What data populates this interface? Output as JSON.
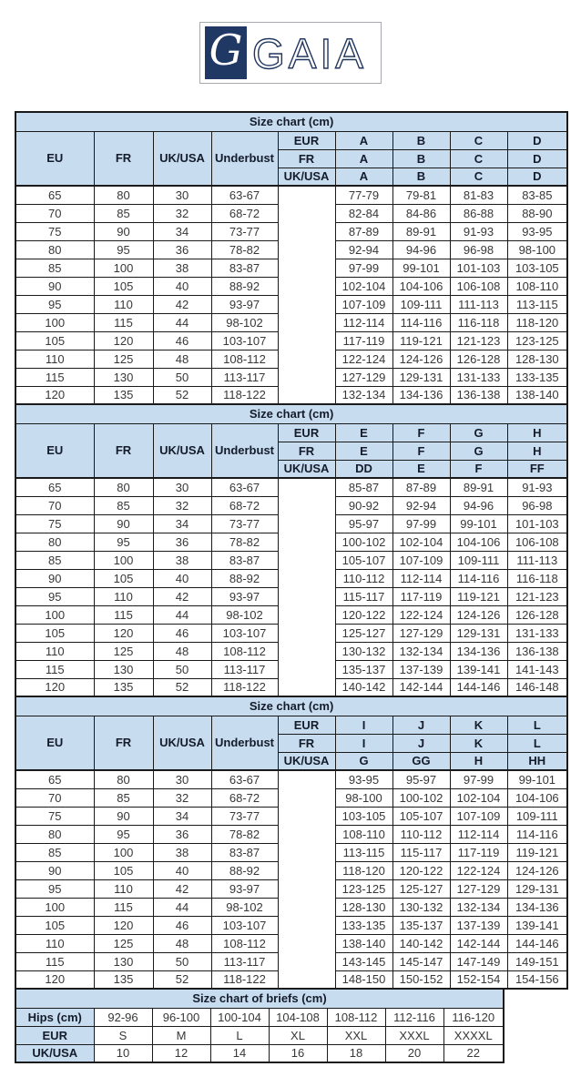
{
  "logo": {
    "brand": "GAIA",
    "monogram": "G",
    "navy": "#1f3864"
  },
  "colors": {
    "header_bg": "#c8dcf0",
    "border": "#1a1a1a",
    "navy": "#1f3864"
  },
  "tables": [
    {
      "title": "Size chart (cm)",
      "band_headers": [
        "EU",
        "FR",
        "UK/USA",
        "Underbust"
      ],
      "cup_rows": [
        {
          "label": "EUR",
          "cups": [
            "A",
            "B",
            "C",
            "D"
          ]
        },
        {
          "label": "FR",
          "cups": [
            "A",
            "B",
            "C",
            "D"
          ]
        },
        {
          "label": "UK/USA",
          "cups": [
            "A",
            "B",
            "C",
            "D"
          ]
        }
      ],
      "rows": [
        [
          "65",
          "80",
          "30",
          "63-67",
          "77-79",
          "79-81",
          "81-83",
          "83-85"
        ],
        [
          "70",
          "85",
          "32",
          "68-72",
          "82-84",
          "84-86",
          "86-88",
          "88-90"
        ],
        [
          "75",
          "90",
          "34",
          "73-77",
          "87-89",
          "89-91",
          "91-93",
          "93-95"
        ],
        [
          "80",
          "95",
          "36",
          "78-82",
          "92-94",
          "94-96",
          "96-98",
          "98-100"
        ],
        [
          "85",
          "100",
          "38",
          "83-87",
          "97-99",
          "99-101",
          "101-103",
          "103-105"
        ],
        [
          "90",
          "105",
          "40",
          "88-92",
          "102-104",
          "104-106",
          "106-108",
          "108-110"
        ],
        [
          "95",
          "110",
          "42",
          "93-97",
          "107-109",
          "109-111",
          "111-113",
          "113-115"
        ],
        [
          "100",
          "115",
          "44",
          "98-102",
          "112-114",
          "114-116",
          "116-118",
          "118-120"
        ],
        [
          "105",
          "120",
          "46",
          "103-107",
          "117-119",
          "119-121",
          "121-123",
          "123-125"
        ],
        [
          "110",
          "125",
          "48",
          "108-112",
          "122-124",
          "124-126",
          "126-128",
          "128-130"
        ],
        [
          "115",
          "130",
          "50",
          "113-117",
          "127-129",
          "129-131",
          "131-133",
          "133-135"
        ],
        [
          "120",
          "135",
          "52",
          "118-122",
          "132-134",
          "134-136",
          "136-138",
          "138-140"
        ]
      ]
    },
    {
      "title": "Size chart (cm)",
      "band_headers": [
        "EU",
        "FR",
        "UK/USA",
        "Underbust"
      ],
      "cup_rows": [
        {
          "label": "EUR",
          "cups": [
            "E",
            "F",
            "G",
            "H"
          ]
        },
        {
          "label": "FR",
          "cups": [
            "E",
            "F",
            "G",
            "H"
          ]
        },
        {
          "label": "UK/USA",
          "cups": [
            "DD",
            "E",
            "F",
            "FF"
          ]
        }
      ],
      "rows": [
        [
          "65",
          "80",
          "30",
          "63-67",
          "85-87",
          "87-89",
          "89-91",
          "91-93"
        ],
        [
          "70",
          "85",
          "32",
          "68-72",
          "90-92",
          "92-94",
          "94-96",
          "96-98"
        ],
        [
          "75",
          "90",
          "34",
          "73-77",
          "95-97",
          "97-99",
          "99-101",
          "101-103"
        ],
        [
          "80",
          "95",
          "36",
          "78-82",
          "100-102",
          "102-104",
          "104-106",
          "106-108"
        ],
        [
          "85",
          "100",
          "38",
          "83-87",
          "105-107",
          "107-109",
          "109-111",
          "111-113"
        ],
        [
          "90",
          "105",
          "40",
          "88-92",
          "110-112",
          "112-114",
          "114-116",
          "116-118"
        ],
        [
          "95",
          "110",
          "42",
          "93-97",
          "115-117",
          "117-119",
          "119-121",
          "121-123"
        ],
        [
          "100",
          "115",
          "44",
          "98-102",
          "120-122",
          "122-124",
          "124-126",
          "126-128"
        ],
        [
          "105",
          "120",
          "46",
          "103-107",
          "125-127",
          "127-129",
          "129-131",
          "131-133"
        ],
        [
          "110",
          "125",
          "48",
          "108-112",
          "130-132",
          "132-134",
          "134-136",
          "136-138"
        ],
        [
          "115",
          "130",
          "50",
          "113-117",
          "135-137",
          "137-139",
          "139-141",
          "141-143"
        ],
        [
          "120",
          "135",
          "52",
          "118-122",
          "140-142",
          "142-144",
          "144-146",
          "146-148"
        ]
      ]
    },
    {
      "title": "Size chart (cm)",
      "band_headers": [
        "EU",
        "FR",
        "UK/USA",
        "Underbust"
      ],
      "cup_rows": [
        {
          "label": "EUR",
          "cups": [
            "I",
            "J",
            "K",
            "L"
          ]
        },
        {
          "label": "FR",
          "cups": [
            "I",
            "J",
            "K",
            "L"
          ]
        },
        {
          "label": "UK/USA",
          "cups": [
            "G",
            "GG",
            "H",
            "HH"
          ]
        }
      ],
      "rows": [
        [
          "65",
          "80",
          "30",
          "63-67",
          "93-95",
          "95-97",
          "97-99",
          "99-101"
        ],
        [
          "70",
          "85",
          "32",
          "68-72",
          "98-100",
          "100-102",
          "102-104",
          "104-106"
        ],
        [
          "75",
          "90",
          "34",
          "73-77",
          "103-105",
          "105-107",
          "107-109",
          "109-111"
        ],
        [
          "80",
          "95",
          "36",
          "78-82",
          "108-110",
          "110-112",
          "112-114",
          "114-116"
        ],
        [
          "85",
          "100",
          "38",
          "83-87",
          "113-115",
          "115-117",
          "117-119",
          "119-121"
        ],
        [
          "90",
          "105",
          "40",
          "88-92",
          "118-120",
          "120-122",
          "122-124",
          "124-126"
        ],
        [
          "95",
          "110",
          "42",
          "93-97",
          "123-125",
          "125-127",
          "127-129",
          "129-131"
        ],
        [
          "100",
          "115",
          "44",
          "98-102",
          "128-130",
          "130-132",
          "132-134",
          "134-136"
        ],
        [
          "105",
          "120",
          "46",
          "103-107",
          "133-135",
          "135-137",
          "137-139",
          "139-141"
        ],
        [
          "110",
          "125",
          "48",
          "108-112",
          "138-140",
          "140-142",
          "142-144",
          "144-146"
        ],
        [
          "115",
          "130",
          "50",
          "113-117",
          "143-145",
          "145-147",
          "147-149",
          "149-151"
        ],
        [
          "120",
          "135",
          "52",
          "118-122",
          "148-150",
          "150-152",
          "152-154",
          "154-156"
        ]
      ]
    }
  ],
  "briefs": {
    "title": "Size chart of briefs (cm)",
    "rows": [
      {
        "label": "Hips (cm)",
        "values": [
          "92-96",
          "96-100",
          "100-104",
          "104-108",
          "108-112",
          "112-116",
          "116-120"
        ]
      },
      {
        "label": "EUR",
        "values": [
          "S",
          "M",
          "L",
          "XL",
          "XXL",
          "XXXL",
          "XXXXL"
        ]
      },
      {
        "label": "UK/USA",
        "values": [
          "10",
          "12",
          "14",
          "16",
          "18",
          "20",
          "22"
        ]
      }
    ]
  }
}
